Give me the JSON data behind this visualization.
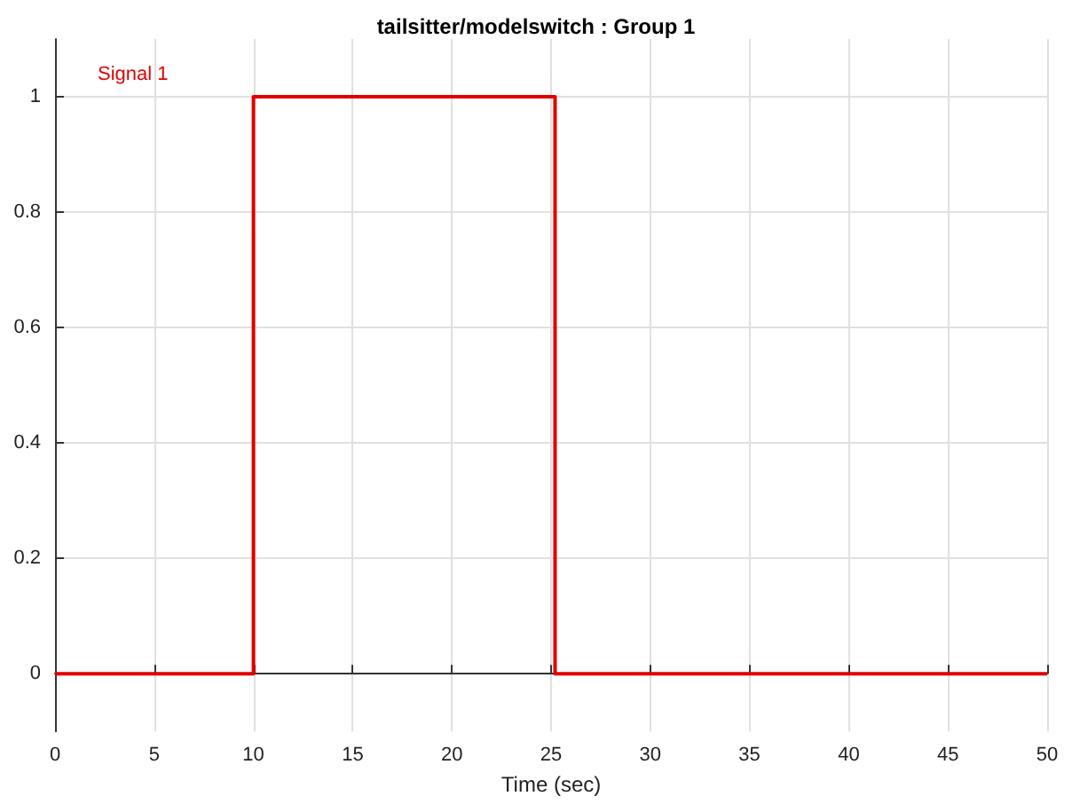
{
  "chart_data": {
    "type": "step",
    "title": "tailsitter/modelswitch : Group 1",
    "xlabel": "Time (sec)",
    "x": [
      0,
      10,
      25.2,
      50
    ],
    "series": [
      {
        "name": "Signal 1",
        "color": "#e00000",
        "values": [
          0,
          1,
          0,
          0
        ]
      }
    ],
    "xlim": [
      0,
      50
    ],
    "xticks": [
      0,
      5,
      10,
      15,
      20,
      25,
      30,
      35,
      40,
      45,
      50
    ],
    "ylim": [
      -0.1,
      1.1
    ],
    "yticks": [
      0,
      0.2,
      0.4,
      0.6,
      0.8,
      1
    ],
    "grid": true,
    "legend": "top left",
    "marker": "none",
    "line_style": "solid"
  }
}
